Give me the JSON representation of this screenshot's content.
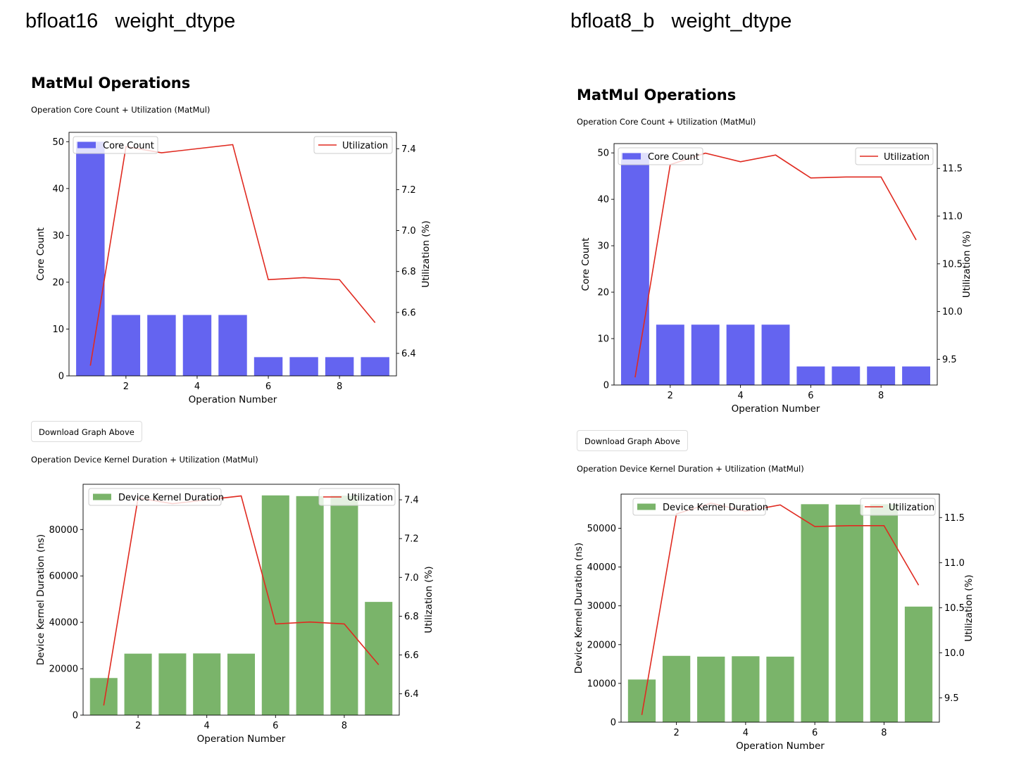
{
  "panels": [
    {
      "heading": "bfloat16   weight_dtype",
      "section": "MatMul Operations",
      "chart1_title": "Operation Core Count + Utilization (MatMul)",
      "button": "Download Graph Above",
      "chart2_title": "Operation Device Kernel Duration + Utilization (MatMul)"
    },
    {
      "heading": "bfloat8_b   weight_dtype",
      "section": "MatMul Operations",
      "chart1_title": "Operation Core Count + Utilization (MatMul)",
      "button": "Download Graph Above",
      "chart2_title": "Operation Device Kernel Duration + Utilization (MatMul)"
    }
  ],
  "chart_data": [
    {
      "type": "bar",
      "title": "Operation Core Count + Utilization (MatMul)",
      "x": [
        1,
        2,
        3,
        4,
        5,
        6,
        7,
        8,
        9
      ],
      "xlabel": "Operation Number",
      "xticks": [
        2,
        4,
        6,
        8
      ],
      "ylabel": "Core Count",
      "ylabel_right": "Utilization (%)",
      "ylim": [
        0,
        52
      ],
      "yticks": [
        0,
        10,
        20,
        30,
        40,
        50
      ],
      "ylim_right": [
        6.29,
        7.48
      ],
      "yticks_right": [
        6.4,
        6.6,
        6.8,
        7.0,
        7.2,
        7.4
      ],
      "right_tick_decimals": 1,
      "bar_color": "#6464f0",
      "line_color": "#e02a20",
      "series": [
        {
          "name": "Core Count",
          "kind": "bar",
          "values": [
            50,
            13,
            13,
            13,
            13,
            4,
            4,
            4,
            4
          ]
        },
        {
          "name": "Utilization",
          "kind": "line",
          "axis": "right",
          "values": [
            6.34,
            7.41,
            7.38,
            7.4,
            7.42,
            6.76,
            6.77,
            6.76,
            6.55
          ]
        }
      ],
      "legend": [
        "upper left",
        "upper right"
      ]
    },
    {
      "type": "bar",
      "title": "Operation Device Kernel Duration + Utilization (MatMul)",
      "x": [
        1,
        2,
        3,
        4,
        5,
        6,
        7,
        8,
        9
      ],
      "xlabel": "Operation Number",
      "xticks": [
        2,
        4,
        6,
        8
      ],
      "ylabel": "Device Kernel Duration (ns)",
      "ylabel_right": "Utilization (%)",
      "ylim": [
        0,
        99500
      ],
      "yticks": [
        0,
        20000,
        40000,
        60000,
        80000
      ],
      "ylim_right": [
        6.29,
        7.48
      ],
      "yticks_right": [
        6.4,
        6.6,
        6.8,
        7.0,
        7.2,
        7.4
      ],
      "right_tick_decimals": 1,
      "bar_color": "#7ab46a",
      "line_color": "#e02a20",
      "series": [
        {
          "name": "Device Kernel Duration",
          "kind": "bar",
          "values": [
            16000,
            26500,
            26600,
            26600,
            26500,
            94700,
            94400,
            94600,
            48800
          ]
        },
        {
          "name": "Utilization",
          "kind": "line",
          "axis": "right",
          "values": [
            6.34,
            7.41,
            7.38,
            7.4,
            7.42,
            6.76,
            6.77,
            6.76,
            6.55
          ]
        }
      ],
      "legend": [
        "upper left",
        "upper right"
      ]
    },
    {
      "type": "bar",
      "title": "Operation Core Count + Utilization (MatMul)",
      "x": [
        1,
        2,
        3,
        4,
        5,
        6,
        7,
        8,
        9
      ],
      "xlabel": "Operation Number",
      "xticks": [
        2,
        4,
        6,
        8
      ],
      "ylabel": "Core Count",
      "ylabel_right": "Utilization (%)",
      "ylim": [
        0,
        52
      ],
      "yticks": [
        0,
        10,
        20,
        30,
        40,
        50
      ],
      "ylim_right": [
        9.23,
        11.76
      ],
      "yticks_right": [
        9.5,
        10.0,
        10.5,
        11.0,
        11.5
      ],
      "right_tick_decimals": 1,
      "bar_color": "#6464f0",
      "line_color": "#e02a20",
      "series": [
        {
          "name": "Core Count",
          "kind": "bar",
          "values": [
            50,
            13,
            13,
            13,
            13,
            4,
            4,
            4,
            4
          ]
        },
        {
          "name": "Utilization",
          "kind": "line",
          "axis": "right",
          "values": [
            9.31,
            11.54,
            11.66,
            11.57,
            11.64,
            11.4,
            11.41,
            11.41,
            10.75
          ]
        }
      ],
      "legend": [
        "upper left",
        "upper right"
      ]
    },
    {
      "type": "bar",
      "title": "Operation Device Kernel Duration + Utilization (MatMul)",
      "x": [
        1,
        2,
        3,
        4,
        5,
        6,
        7,
        8,
        9
      ],
      "xlabel": "Operation Number",
      "xticks": [
        2,
        4,
        6,
        8
      ],
      "ylabel": "Device Kernel Duration (ns)",
      "ylabel_right": "Utilization (%)",
      "ylim": [
        0,
        58800
      ],
      "yticks": [
        0,
        10000,
        20000,
        30000,
        40000,
        50000
      ],
      "ylim_right": [
        9.23,
        11.76
      ],
      "yticks_right": [
        9.5,
        10.0,
        10.5,
        11.0,
        11.5
      ],
      "right_tick_decimals": 1,
      "bar_color": "#7ab46a",
      "line_color": "#e02a20",
      "series": [
        {
          "name": "Device Kernel Duration",
          "kind": "bar",
          "values": [
            11000,
            17100,
            16900,
            17000,
            16900,
            56200,
            56100,
            56200,
            29800
          ]
        },
        {
          "name": "Utilization",
          "kind": "line",
          "axis": "right",
          "values": [
            9.31,
            11.54,
            11.66,
            11.57,
            11.64,
            11.4,
            11.41,
            11.41,
            10.75
          ]
        }
      ],
      "legend": [
        "upper left",
        "upper right"
      ]
    }
  ]
}
